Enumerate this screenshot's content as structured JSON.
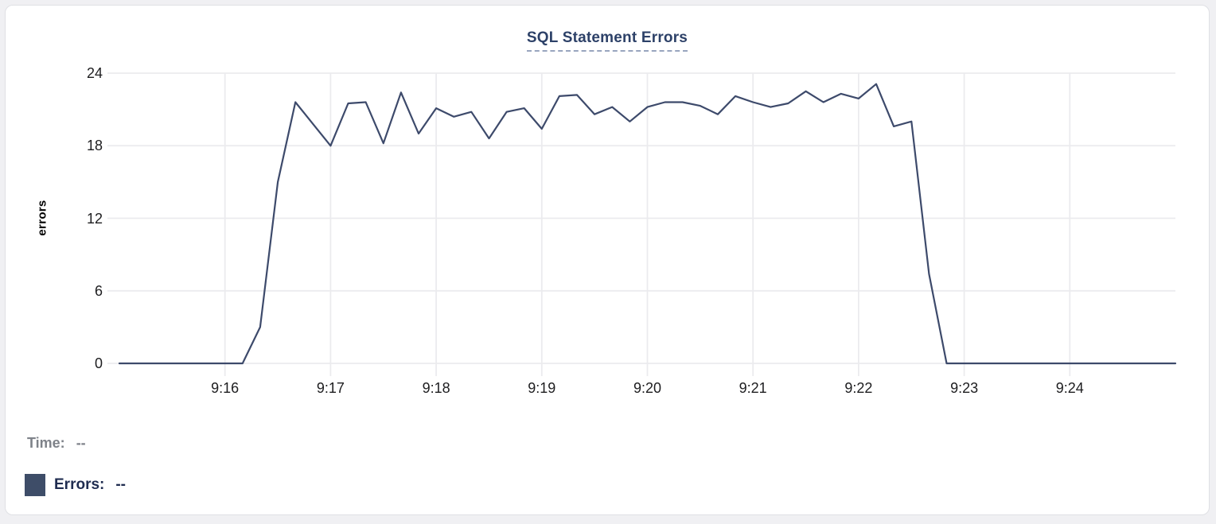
{
  "card": {
    "title": "SQL Statement Errors"
  },
  "chart_data": {
    "type": "line",
    "title": "SQL Statement Errors",
    "xlabel": "",
    "ylabel": "errors",
    "series_name": "Errors",
    "line_color": "#3d4a6b",
    "grid_color": "#ebebee",
    "ylim": [
      0,
      24
    ],
    "y_ticks": [
      0,
      6,
      12,
      18,
      24
    ],
    "x_ticks": [
      "9:16",
      "9:17",
      "9:18",
      "9:19",
      "9:20",
      "9:21",
      "9:22",
      "9:23",
      "9:24"
    ],
    "legend_position": "bottom-left",
    "grid": true,
    "x": [
      "9:15:00",
      "9:15:10",
      "9:15:20",
      "9:15:30",
      "9:15:40",
      "9:15:50",
      "9:16:00",
      "9:16:10",
      "9:16:20",
      "9:16:30",
      "9:16:40",
      "9:16:50",
      "9:17:00",
      "9:17:10",
      "9:17:20",
      "9:17:30",
      "9:17:40",
      "9:17:50",
      "9:18:00",
      "9:18:10",
      "9:18:20",
      "9:18:30",
      "9:18:40",
      "9:18:50",
      "9:19:00",
      "9:19:10",
      "9:19:20",
      "9:19:30",
      "9:19:40",
      "9:19:50",
      "9:20:00",
      "9:20:10",
      "9:20:20",
      "9:20:30",
      "9:20:40",
      "9:20:50",
      "9:21:00",
      "9:21:10",
      "9:21:20",
      "9:21:30",
      "9:21:40",
      "9:21:50",
      "9:22:00",
      "9:22:10",
      "9:22:20",
      "9:22:30",
      "9:22:40",
      "9:22:50",
      "9:23:00",
      "9:23:10",
      "9:23:20",
      "9:23:30",
      "9:23:40",
      "9:23:50",
      "9:24:00",
      "9:24:10",
      "9:24:20",
      "9:24:30",
      "9:24:40",
      "9:24:50",
      "9:25:00"
    ],
    "values": [
      0,
      0,
      0,
      0,
      0,
      0,
      0,
      0,
      3,
      15,
      21.6,
      19.8,
      18,
      21.5,
      21.6,
      18.2,
      22.4,
      19,
      21.1,
      20.4,
      20.8,
      18.6,
      20.8,
      21.1,
      19.4,
      22.1,
      22.2,
      20.6,
      21.2,
      20,
      21.2,
      21.6,
      21.6,
      21.3,
      20.6,
      22.1,
      21.6,
      21.2,
      21.5,
      22.5,
      21.6,
      22.3,
      21.9,
      23.1,
      19.6,
      20,
      7.4,
      0,
      0,
      0,
      0,
      0,
      0,
      0,
      0,
      0,
      0,
      0,
      0,
      0,
      0
    ]
  },
  "legend": {
    "time_label": "Time:",
    "time_value": "--",
    "errors_label": "Errors:",
    "errors_value": "--",
    "swatch_color": "#3e4d68"
  }
}
